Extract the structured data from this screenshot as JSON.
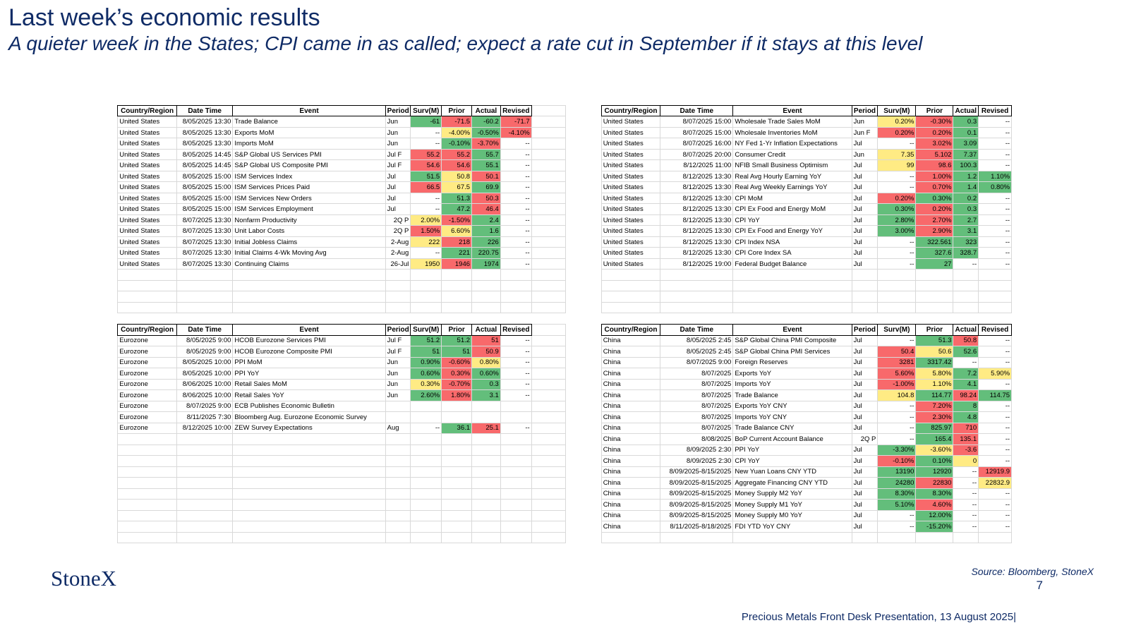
{
  "header": {
    "title": "Last week’s economic results",
    "subtitle": "A quieter week in the States; CPI came in as called; expect a rate cut in September if it stays at this level"
  },
  "tables": [
    {
      "columns": [
        "Country/Region",
        "Date Time",
        "Event",
        "Period",
        "Surv(M)",
        "Prior",
        "Actual",
        "Revised"
      ],
      "rows": [
        [
          "United States",
          "8/05/2025 13:30",
          "Trade Balance",
          "Jun",
          "-61",
          "-71.5",
          "-60.2",
          "-71.7"
        ],
        [
          "United States",
          "8/05/2025 13:30",
          "Exports MoM",
          "Jun",
          "--",
          "-4.00%",
          "-0.50%",
          "-4.10%"
        ],
        [
          "United States",
          "8/05/2025 13:30",
          "Imports MoM",
          "Jun",
          "--",
          "-0.10%",
          "-3.70%",
          "--"
        ],
        [
          "United States",
          "8/05/2025 14:45",
          "S&P Global US Services PMI",
          "Jul F",
          "55.2",
          "55.2",
          "55.7",
          "--"
        ],
        [
          "United States",
          "8/05/2025 14:45",
          "S&P Global US Composite PMI",
          "Jul F",
          "54.6",
          "54.6",
          "55.1",
          "--"
        ],
        [
          "United States",
          "8/05/2025 15:00",
          "ISM Services Index",
          "Jul",
          "51.5",
          "50.8",
          "50.1",
          "--"
        ],
        [
          "United States",
          "8/05/2025 15:00",
          "ISM Services Prices Paid",
          "Jul",
          "66.5",
          "67.5",
          "69.9",
          "--"
        ],
        [
          "United States",
          "8/05/2025 15:00",
          "ISM Services New Orders",
          "Jul",
          "--",
          "51.3",
          "50.3",
          "--"
        ],
        [
          "United States",
          "8/05/2025 15:00",
          "ISM Services Employment",
          "Jul",
          "--",
          "47.2",
          "46.4",
          "--"
        ],
        [
          "United States",
          "8/07/2025 13:30",
          "Nonfarm Productivity",
          "2Q P",
          "2.00%",
          "-1.50%",
          "2.4",
          "--"
        ],
        [
          "United States",
          "8/07/2025 13:30",
          "Unit Labor Costs",
          "2Q P",
          "1.50%",
          "6.60%",
          "1.6",
          "--"
        ],
        [
          "United States",
          "8/07/2025 13:30",
          "Initial Jobless Claims",
          "2-Aug",
          "222",
          "218",
          "226",
          "--"
        ],
        [
          "United States",
          "8/07/2025 13:30",
          "Initial Claims 4-Wk Moving Avg",
          "2-Aug",
          "--",
          "221",
          "220.75",
          "--"
        ],
        [
          "United States",
          "8/07/2025 13:30",
          "Continuing Claims",
          "26-Jul",
          "1950",
          "1946",
          "1974",
          "--"
        ]
      ],
      "fills": [
        [
          "green",
          "red",
          "green",
          "red"
        ],
        [
          null,
          "yellow",
          "green",
          "red"
        ],
        [
          null,
          "green",
          "red",
          null
        ],
        [
          "red",
          "red",
          "green",
          null
        ],
        [
          "red",
          "red",
          "green",
          null
        ],
        [
          "green",
          "yellow",
          "red",
          null
        ],
        [
          "red",
          "yellow",
          "green",
          null
        ],
        [
          null,
          "green",
          "red",
          null
        ],
        [
          null,
          "green",
          "red",
          null
        ],
        [
          "yellow",
          "red",
          "green",
          null
        ],
        [
          "red",
          "yellow",
          "green",
          null
        ],
        [
          "yellow",
          "red",
          "green",
          null
        ],
        [
          null,
          "green",
          "green",
          null
        ],
        [
          "yellow",
          "red",
          "green",
          null
        ]
      ]
    },
    {
      "columns": [
        "Country/Region",
        "Date Time",
        "Event",
        "Period",
        "Surv(M)",
        "Prior",
        "Actual",
        "Revised"
      ],
      "rows": [
        [
          "United States",
          "8/07/2025 15:00",
          "Wholesale Trade Sales MoM",
          "Jun",
          "0.20%",
          "-0.30%",
          "0.3",
          "--"
        ],
        [
          "United States",
          "8/07/2025 15:00",
          "Wholesale Inventories MoM",
          "Jun F",
          "0.20%",
          "0.20%",
          "0.1",
          "--"
        ],
        [
          "United States",
          "8/07/2025 16:00",
          "NY Fed 1-Yr Inflation Expectations",
          "Jul",
          "--",
          "3.02%",
          "3.09",
          "--"
        ],
        [
          "United States",
          "8/07/2025 20:00",
          "Consumer Credit",
          "Jun",
          "7.35",
          "5.102",
          "7.37",
          "--"
        ],
        [
          "United States",
          "8/12/2025 11:00",
          "NFIB Small Business Optimism",
          "Jul",
          "99",
          "98.6",
          "100.3",
          "--"
        ],
        [
          "United States",
          "8/12/2025 13:30",
          "Real Avg Hourly Earning YoY",
          "Jul",
          "--",
          "1.00%",
          "1.2",
          "1.10%"
        ],
        [
          "United States",
          "8/12/2025 13:30",
          "Real Avg Weekly Earnings YoY",
          "Jul",
          "--",
          "0.70%",
          "1.4",
          "0.80%"
        ],
        [
          "United States",
          "8/12/2025 13:30",
          "CPI MoM",
          "Jul",
          "0.20%",
          "0.30%",
          "0.2",
          "--"
        ],
        [
          "United States",
          "8/12/2025 13:30",
          "CPI Ex Food and Energy MoM",
          "Jul",
          "0.30%",
          "0.20%",
          "0.3",
          "--"
        ],
        [
          "United States",
          "8/12/2025 13:30",
          "CPI YoY",
          "Jul",
          "2.80%",
          "2.70%",
          "2.7",
          "--"
        ],
        [
          "United States",
          "8/12/2025 13:30",
          "CPI Ex Food and Energy YoY",
          "Jul",
          "3.00%",
          "2.90%",
          "3.1",
          "--"
        ],
        [
          "United States",
          "8/12/2025 13:30",
          "CPI Index NSA",
          "Jul",
          "--",
          "322.561",
          "323",
          "--"
        ],
        [
          "United States",
          "8/12/2025 13:30",
          "CPI Core Index SA",
          "Jul",
          "--",
          "327.6",
          "328.7",
          "--"
        ],
        [
          "United States",
          "8/12/2025 19:00",
          "Federal Budget Balance",
          "Jul",
          "--",
          "27",
          "--",
          "--"
        ]
      ],
      "fills": [
        [
          "yellow",
          "red",
          "green",
          null
        ],
        [
          "red",
          "red",
          "green",
          null
        ],
        [
          null,
          "red",
          "green",
          null
        ],
        [
          "yellow",
          "red",
          "green",
          null
        ],
        [
          "yellow",
          "red",
          "green",
          null
        ],
        [
          null,
          "red",
          "green",
          "green"
        ],
        [
          null,
          "red",
          "green",
          "green"
        ],
        [
          "red",
          "green",
          "green",
          null
        ],
        [
          "green",
          "red",
          "green",
          null
        ],
        [
          "green",
          "red",
          "green",
          null
        ],
        [
          "green",
          "red",
          "green",
          null
        ],
        [
          null,
          "green",
          "green",
          null
        ],
        [
          null,
          "green",
          "green",
          null
        ],
        [
          null,
          "green",
          null,
          null
        ]
      ]
    },
    {
      "columns": [
        "Country/Region",
        "Date Time",
        "Event",
        "Period",
        "Surv(M)",
        "Prior",
        "Actual",
        "Revised"
      ],
      "rows": [
        [
          "Eurozone",
          "8/05/2025 9:00",
          "HCOB Eurozone Services PMI",
          "Jul F",
          "51.2",
          "51.2",
          "51",
          "--"
        ],
        [
          "Eurozone",
          "8/05/2025 9:00",
          "HCOB Eurozone Composite PMI",
          "Jul F",
          "51",
          "51",
          "50.9",
          "--"
        ],
        [
          "Eurozone",
          "8/05/2025 10:00",
          "PPI MoM",
          "Jun",
          "0.90%",
          "-0.60%",
          "0.80%",
          "--"
        ],
        [
          "Eurozone",
          "8/05/2025 10:00",
          "PPI YoY",
          "Jun",
          "0.60%",
          "0.30%",
          "0.60%",
          "--"
        ],
        [
          "Eurozone",
          "8/06/2025 10:00",
          "Retail Sales MoM",
          "Jun",
          "0.30%",
          "-0.70%",
          "0.3",
          "--"
        ],
        [
          "Eurozone",
          "8/06/2025 10:00",
          "Retail Sales YoY",
          "Jun",
          "2.60%",
          "1.80%",
          "3.1",
          "--"
        ],
        [
          "Eurozone",
          "8/07/2025 9:00",
          "ECB Publishes Economic Bulletin",
          null,
          null,
          null,
          null,
          null
        ],
        [
          "Eurozone",
          "8/11/2025 7:30",
          "Bloomberg Aug. Eurozone Economic Survey",
          null,
          null,
          null,
          null,
          null
        ],
        [
          "Eurozone",
          "8/12/2025 10:00",
          "ZEW Survey Expectations",
          "Aug",
          "--",
          "36.1",
          "25.1",
          "--"
        ]
      ],
      "fills": [
        [
          "green",
          "green",
          "red",
          null
        ],
        [
          "green",
          "green",
          "red",
          null
        ],
        [
          "green",
          "red",
          "yellow",
          null
        ],
        [
          "green",
          "red",
          "green",
          null
        ],
        [
          "yellow",
          "red",
          "green",
          null
        ],
        [
          "green",
          "red",
          "green",
          null
        ],
        [
          null,
          null,
          null,
          null
        ],
        [
          null,
          null,
          null,
          null
        ],
        [
          null,
          "green",
          "red",
          null
        ]
      ]
    },
    {
      "columns": [
        "Country/Region",
        "Date Time",
        "Event",
        "Period",
        "Surv(M)",
        "Prior",
        "Actual",
        "Revised"
      ],
      "rows": [
        [
          "China",
          "8/05/2025 2:45",
          "S&P Global China PMI Composite",
          "Jul",
          "--",
          "51.3",
          "50.8",
          "--"
        ],
        [
          "China",
          "8/05/2025 2:45",
          "S&P Global China PMI Services",
          "Jul",
          "50.4",
          "50.6",
          "52.6",
          "--"
        ],
        [
          "China",
          "8/07/2025 9:00",
          "Foreign Reserves",
          "Jul",
          "3281",
          "3317.42",
          "--",
          "--"
        ],
        [
          "China",
          "8/07/2025",
          "Exports YoY",
          "Jul",
          "5.60%",
          "5.80%",
          "7.2",
          "5.90%"
        ],
        [
          "China",
          "8/07/2025",
          "Imports YoY",
          "Jul",
          "-1.00%",
          "1.10%",
          "4.1",
          "--"
        ],
        [
          "China",
          "8/07/2025",
          "Trade Balance",
          "Jul",
          "104.8",
          "114.77",
          "98.24",
          "114.75"
        ],
        [
          "China",
          "8/07/2025",
          "Exports YoY CNY",
          "Jul",
          "--",
          "7.20%",
          "8",
          "--"
        ],
        [
          "China",
          "8/07/2025",
          "Imports YoY CNY",
          "Jul",
          "--",
          "2.30%",
          "4.8",
          "--"
        ],
        [
          "China",
          "8/07/2025",
          "Trade Balance CNY",
          "Jul",
          "--",
          "825.97",
          "710",
          "--"
        ],
        [
          "China",
          "8/08/2025",
          "BoP Current Account Balance",
          "2Q P",
          "--",
          "165.4",
          "135.1",
          "--"
        ],
        [
          "China",
          "8/09/2025 2:30",
          "PPI YoY",
          "Jul",
          "-3.30%",
          "-3.60%",
          "-3.6",
          "--"
        ],
        [
          "China",
          "8/09/2025 2:30",
          "CPI YoY",
          "Jul",
          "-0.10%",
          "0.10%",
          "0",
          "--"
        ],
        [
          "China",
          "8/09/2025-8/15/2025",
          "New Yuan Loans CNY YTD",
          "Jul",
          "13190",
          "12920",
          "--",
          "12919.9"
        ],
        [
          "China",
          "8/09/2025-8/15/2025",
          "Aggregate Financing CNY YTD",
          "Jul",
          "24280",
          "22830",
          "--",
          "22832.9"
        ],
        [
          "China",
          "8/09/2025-8/15/2025",
          "Money Supply M2 YoY",
          "Jul",
          "8.30%",
          "8.30%",
          "--",
          "--"
        ],
        [
          "China",
          "8/09/2025-8/15/2025",
          "Money Supply M1 YoY",
          "Jul",
          "5.10%",
          "4.60%",
          "--",
          "--"
        ],
        [
          "China",
          "8/09/2025-8/15/2025",
          "Money Supply M0 YoY",
          "Jul",
          "--",
          "12.00%",
          "--",
          "--"
        ],
        [
          "China",
          "8/11/2025-8/18/2025",
          "FDI YTD YoY CNY",
          "Jul",
          "--",
          "-15.20%",
          "--",
          "--"
        ]
      ],
      "fills": [
        [
          null,
          "green",
          "red",
          null
        ],
        [
          "red",
          "yellow",
          "green",
          null
        ],
        [
          "red",
          "green",
          null,
          null
        ],
        [
          "red",
          "yellow",
          "green",
          "yellow"
        ],
        [
          "red",
          "yellow",
          "green",
          null
        ],
        [
          "yellow",
          "green",
          "red",
          "green"
        ],
        [
          null,
          "red",
          "green",
          null
        ],
        [
          null,
          "red",
          "green",
          null
        ],
        [
          null,
          "green",
          "red",
          null
        ],
        [
          null,
          "green",
          "red",
          null
        ],
        [
          "green",
          "yellow",
          "red",
          null
        ],
        [
          "red",
          "green",
          "yellow",
          null
        ],
        [
          "green",
          "green",
          null,
          "red"
        ],
        [
          "green",
          "red",
          null,
          "yellow"
        ],
        [
          "green",
          "green",
          null,
          null
        ],
        [
          "green",
          "red",
          null,
          null
        ],
        [
          null,
          "green",
          null,
          null
        ],
        [
          null,
          "green",
          null,
          null
        ]
      ]
    }
  ],
  "footer": {
    "logo": "StoneX",
    "source": "Source: Bloomberg, StoneX",
    "page": "7",
    "presentation": "Precious Metals Front Desk Presentation, 13 August 2025|"
  }
}
